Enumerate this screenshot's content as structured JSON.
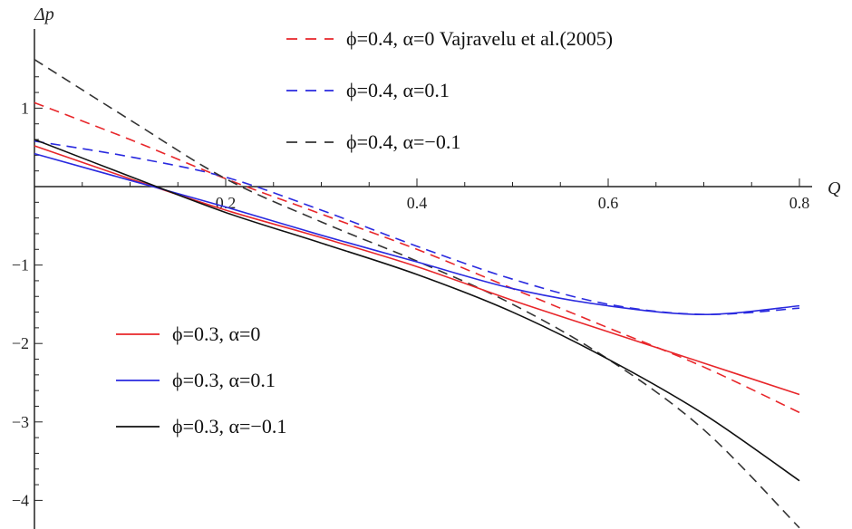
{
  "chart_data": {
    "type": "line",
    "xlabel": "Q",
    "ylabel": "Δp",
    "xlim": [
      0,
      0.8
    ],
    "ylim": [
      -4.3,
      1.7
    ],
    "x_ticks": [
      {
        "value": 0.2,
        "label": "0.2"
      },
      {
        "value": 0.4,
        "label": "0.4"
      },
      {
        "value": 0.6,
        "label": "0.6"
      },
      {
        "value": 0.8,
        "label": "0.8"
      }
    ],
    "y_ticks": [
      {
        "value": 1,
        "label": "1"
      },
      {
        "value": -1,
        "label": "−1"
      },
      {
        "value": -2,
        "label": "−2"
      },
      {
        "value": -3,
        "label": "−3"
      },
      {
        "value": -4,
        "label": "−4"
      }
    ],
    "legend_top": [
      {
        "series": 0,
        "text": "ϕ=0.4, α=0 Vajravelu et al.(2005)"
      },
      {
        "series": 1,
        "text": "ϕ=0.4, α=0.1"
      },
      {
        "series": 2,
        "text": "ϕ=0.4, α=−0.1"
      }
    ],
    "legend_bottom": [
      {
        "series": 3,
        "text": "ϕ=0.3, α=0"
      },
      {
        "series": 4,
        "text": "ϕ=0.3, α=0.1"
      },
      {
        "series": 5,
        "text": "ϕ=0.3, α=−0.1"
      }
    ],
    "series": [
      {
        "name": "ϕ=0.4, α=0 Vajravelu et al.(2005)",
        "color": "#e8262a",
        "dash": true,
        "x": [
          0,
          0.1,
          0.2,
          0.3,
          0.4,
          0.5,
          0.6,
          0.7,
          0.8
        ],
        "y": [
          1.07,
          0.6,
          0.1,
          -0.35,
          -0.8,
          -1.3,
          -1.8,
          -2.3,
          -2.88
        ]
      },
      {
        "name": "ϕ=0.4, α=0.1",
        "color": "#2a2adf",
        "dash": true,
        "x": [
          0,
          0.1,
          0.2,
          0.3,
          0.4,
          0.5,
          0.6,
          0.7,
          0.8
        ],
        "y": [
          0.58,
          0.38,
          0.12,
          -0.3,
          -0.76,
          -1.18,
          -1.5,
          -1.63,
          -1.55
        ]
      },
      {
        "name": "ϕ=0.4, α=−0.1",
        "color": "#333333",
        "dash": true,
        "x": [
          0,
          0.1,
          0.2,
          0.3,
          0.4,
          0.5,
          0.6,
          0.7,
          0.8
        ],
        "y": [
          1.62,
          0.85,
          0.1,
          -0.45,
          -0.95,
          -1.5,
          -2.2,
          -3.1,
          -4.35
        ]
      },
      {
        "name": "ϕ=0.3, α=0",
        "color": "#e8262a",
        "dash": false,
        "x": [
          0,
          0.1,
          0.2,
          0.3,
          0.4,
          0.5,
          0.6,
          0.7,
          0.8
        ],
        "y": [
          0.52,
          0.1,
          -0.3,
          -0.65,
          -1.02,
          -1.45,
          -1.85,
          -2.25,
          -2.65
        ]
      },
      {
        "name": "ϕ=0.3, α=0.1",
        "color": "#2a2adf",
        "dash": false,
        "x": [
          0,
          0.1,
          0.2,
          0.3,
          0.4,
          0.5,
          0.6,
          0.7,
          0.8
        ],
        "y": [
          0.42,
          0.08,
          -0.26,
          -0.62,
          -0.96,
          -1.3,
          -1.52,
          -1.63,
          -1.52
        ]
      },
      {
        "name": "ϕ=0.3, α=−0.1",
        "color": "#111111",
        "dash": false,
        "x": [
          0,
          0.1,
          0.2,
          0.3,
          0.4,
          0.5,
          0.6,
          0.7,
          0.8
        ],
        "y": [
          0.6,
          0.13,
          -0.33,
          -0.72,
          -1.12,
          -1.6,
          -2.2,
          -2.9,
          -3.75
        ]
      }
    ]
  }
}
